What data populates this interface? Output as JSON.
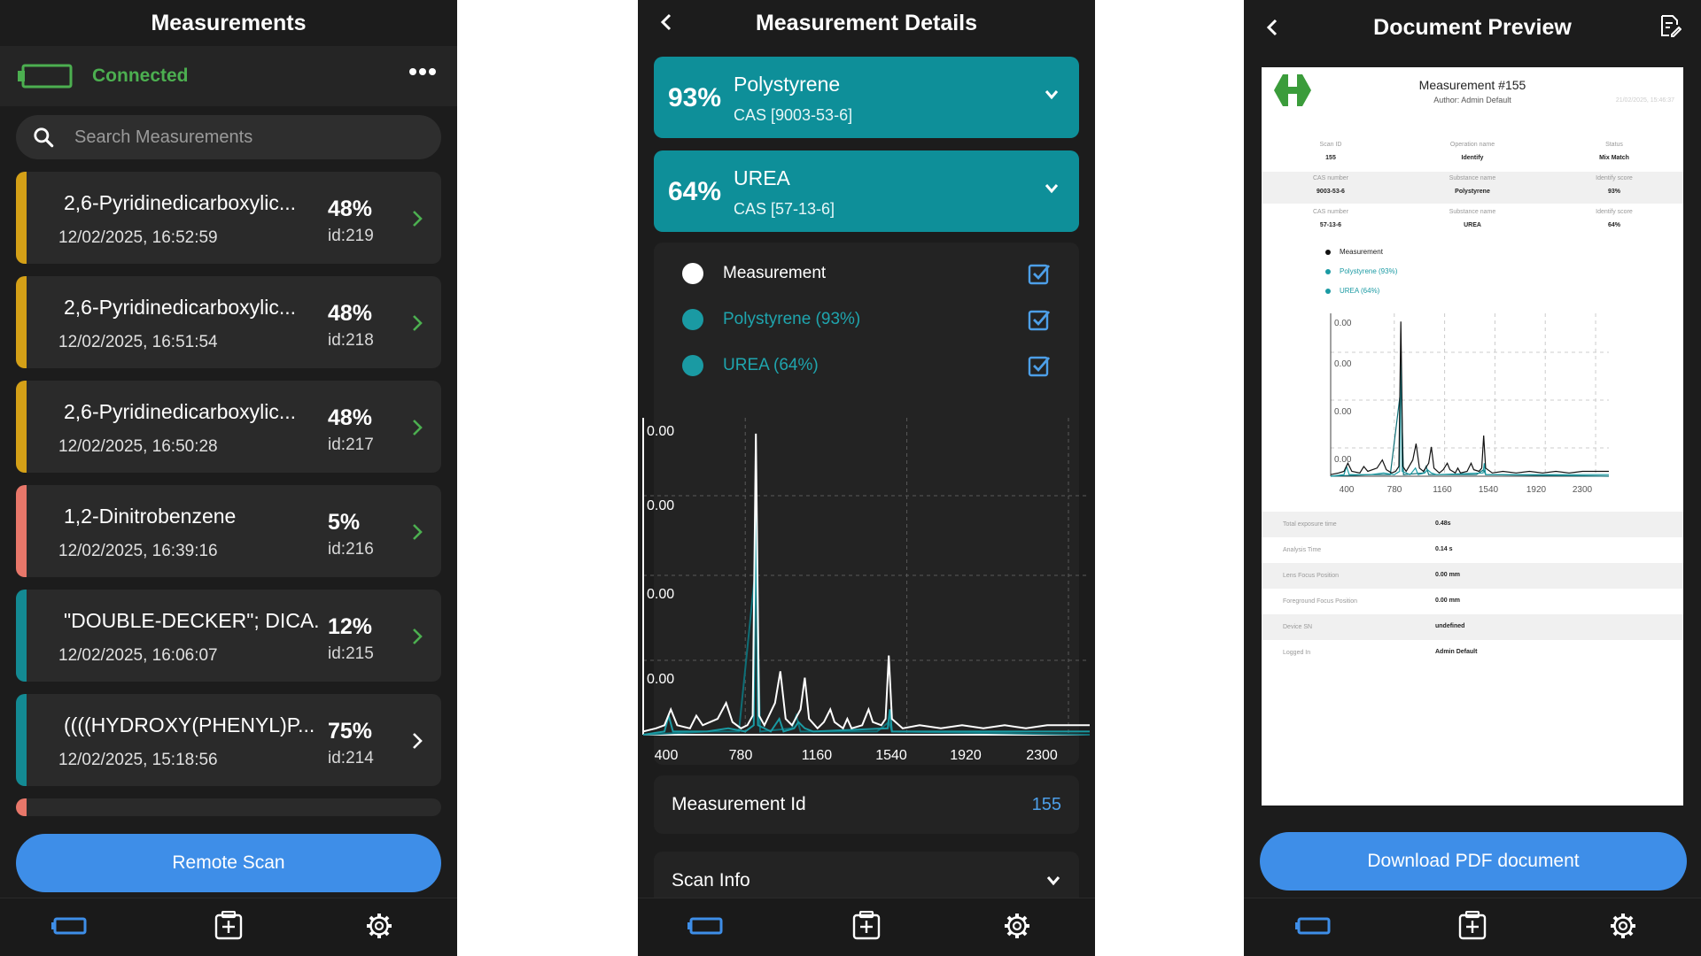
{
  "colors": {
    "accent": "#3e8ee8",
    "teal": "#0e8f99",
    "connected": "#4caf50",
    "bar_yellow": "#d4a017",
    "bar_red": "#e8776a",
    "bar_teal": "#138a93"
  },
  "p1": {
    "title": "Measurements",
    "status": "Connected",
    "search_placeholder": "Search Measurements",
    "items": [
      {
        "name": "2,6-Pyridinedicarboxylic...",
        "date": "12/02/2025, 16:52:59",
        "pct": "48%",
        "id": "id:219",
        "bar": "yellow"
      },
      {
        "name": "2,6-Pyridinedicarboxylic...",
        "date": "12/02/2025, 16:51:54",
        "pct": "48%",
        "id": "id:218",
        "bar": "yellow"
      },
      {
        "name": "2,6-Pyridinedicarboxylic...",
        "date": "12/02/2025, 16:50:28",
        "pct": "48%",
        "id": "id:217",
        "bar": "yellow"
      },
      {
        "name": "1,2-Dinitrobenzene",
        "date": "12/02/2025, 16:39:16",
        "pct": "5%",
        "id": "id:216",
        "bar": "red"
      },
      {
        "name": "\"DOUBLE-DECKER\"; DICA...",
        "date": "12/02/2025, 16:06:07",
        "pct": "12%",
        "id": "id:215",
        "bar": "teal"
      },
      {
        "name": "((((HYDROXY(PHENYL)P...",
        "date": "12/02/2025, 15:18:56",
        "pct": "75%",
        "id": "id:214",
        "bar": "teal"
      }
    ],
    "remote_scan": "Remote Scan"
  },
  "p2": {
    "title": "Measurement Details",
    "substances": [
      {
        "pct": "93%",
        "name": "Polystyrene",
        "cas": "CAS [9003-53-6]"
      },
      {
        "pct": "64%",
        "name": "UREA",
        "cas": "CAS [57-13-6]"
      }
    ],
    "legend": [
      {
        "label": "Measurement",
        "color": "#ffffff",
        "text_color": "#ffffff"
      },
      {
        "label": "Polystyrene (93%)",
        "color": "#1a9aa3",
        "text_color": "#1fa5ae"
      },
      {
        "label": "UREA (64%)",
        "color": "#1a9aa3",
        "text_color": "#1fa5ae"
      }
    ],
    "measurement_id_label": "Measurement Id",
    "measurement_id_value": "155",
    "scan_info": "Scan Info"
  },
  "p3": {
    "title": "Document Preview",
    "doc": {
      "title": "Measurement #155",
      "author": "Author: Admin Default",
      "date": "21/02/2025, 15:46:37",
      "rows": [
        [
          {
            "k": "Scan ID",
            "v": "155"
          },
          {
            "k": "Operation name",
            "v": "Identify"
          },
          {
            "k": "Status",
            "v": "Mix Match"
          }
        ],
        [
          {
            "k": "CAS number",
            "v": "9003-53-6"
          },
          {
            "k": "Substance name",
            "v": "Polystyrene"
          },
          {
            "k": "Identify score",
            "v": "93%"
          }
        ],
        [
          {
            "k": "CAS number",
            "v": "57-13-6"
          },
          {
            "k": "Substance name",
            "v": "UREA"
          },
          {
            "k": "Identify score",
            "v": "64%"
          }
        ]
      ],
      "legend": [
        {
          "label": "Measurement",
          "color": "#111111",
          "text_color": "#222222"
        },
        {
          "label": "Polystyrene (93%)",
          "color": "#1a9aa3",
          "text_color": "#1a9aa3"
        },
        {
          "label": "UREA (64%)",
          "color": "#1a9aa3",
          "text_color": "#1a9aa3"
        }
      ],
      "props": [
        {
          "k": "Total exposure time",
          "v": "0.48s"
        },
        {
          "k": "Analysis Time",
          "v": "0.14 s"
        },
        {
          "k": "Lens Focus Position",
          "v": "0.00 mm"
        },
        {
          "k": "Foreground Focus Position",
          "v": "0.00 mm"
        },
        {
          "k": "Device SN",
          "v": "undefined"
        },
        {
          "k": "Logged In",
          "v": "Admin Default"
        }
      ]
    },
    "download": "Download PDF document"
  },
  "chart_data": {
    "type": "line",
    "x_ticks": [
      "400",
      "780",
      "1160",
      "1540",
      "1920",
      "2300"
    ],
    "y_ticks": [
      "0.00",
      "0.00",
      "0.00",
      "0.00"
    ],
    "xlim": [
      300,
      2400
    ],
    "ylim": [
      0,
      1
    ],
    "grid": true,
    "series": [
      {
        "name": "Measurement",
        "color": "#ffffff",
        "points": [
          [
            300,
            0.01
          ],
          [
            360,
            0.02
          ],
          [
            400,
            0.03
          ],
          [
            430,
            0.08
          ],
          [
            460,
            0.03
          ],
          [
            520,
            0.02
          ],
          [
            550,
            0.06
          ],
          [
            580,
            0.03
          ],
          [
            650,
            0.05
          ],
          [
            690,
            0.1
          ],
          [
            720,
            0.04
          ],
          [
            760,
            0.02
          ],
          [
            790,
            0.03
          ],
          [
            815,
            0.06
          ],
          [
            830,
            0.95
          ],
          [
            845,
            0.06
          ],
          [
            870,
            0.03
          ],
          [
            920,
            0.1
          ],
          [
            945,
            0.2
          ],
          [
            970,
            0.05
          ],
          [
            1000,
            0.03
          ],
          [
            1040,
            0.08
          ],
          [
            1060,
            0.18
          ],
          [
            1080,
            0.05
          ],
          [
            1120,
            0.02
          ],
          [
            1150,
            0.04
          ],
          [
            1180,
            0.08
          ],
          [
            1200,
            0.04
          ],
          [
            1240,
            0.02
          ],
          [
            1260,
            0.05
          ],
          [
            1280,
            0.02
          ],
          [
            1330,
            0.03
          ],
          [
            1360,
            0.08
          ],
          [
            1380,
            0.04
          ],
          [
            1420,
            0.03
          ],
          [
            1440,
            0.05
          ],
          [
            1455,
            0.25
          ],
          [
            1470,
            0.05
          ],
          [
            1520,
            0.02
          ],
          [
            1600,
            0.03
          ],
          [
            1700,
            0.02
          ],
          [
            1800,
            0.03
          ],
          [
            1900,
            0.02
          ],
          [
            2000,
            0.03
          ],
          [
            2100,
            0.02
          ],
          [
            2200,
            0.03
          ],
          [
            2300,
            0.03
          ],
          [
            2400,
            0.03
          ]
        ]
      },
      {
        "name": "Polystyrene (93%)",
        "color": "#1a9aa3",
        "points": [
          [
            300,
            0.0
          ],
          [
            400,
            0.01
          ],
          [
            420,
            0.06
          ],
          [
            440,
            0.01
          ],
          [
            600,
            0.01
          ],
          [
            700,
            0.02
          ],
          [
            780,
            0.01
          ],
          [
            820,
            0.03
          ],
          [
            830,
            0.8
          ],
          [
            840,
            0.03
          ],
          [
            900,
            0.01
          ],
          [
            940,
            0.05
          ],
          [
            960,
            0.01
          ],
          [
            1010,
            0.02
          ],
          [
            1030,
            0.04
          ],
          [
            1060,
            0.02
          ],
          [
            1100,
            0.01
          ],
          [
            1450,
            0.02
          ],
          [
            1460,
            0.08
          ],
          [
            1470,
            0.01
          ],
          [
            1600,
            0.01
          ],
          [
            2400,
            0.01
          ]
        ]
      },
      {
        "name": "UREA (64%)",
        "color": "#0e6f77",
        "points": [
          [
            300,
            0.0
          ],
          [
            600,
            0.01
          ],
          [
            750,
            0.01
          ],
          [
            832,
            0.55
          ],
          [
            850,
            0.01
          ],
          [
            1000,
            0.02
          ],
          [
            1020,
            0.06
          ],
          [
            1040,
            0.01
          ],
          [
            1400,
            0.01
          ],
          [
            1455,
            0.04
          ],
          [
            1470,
            0.01
          ],
          [
            2400,
            0.0
          ]
        ]
      }
    ]
  }
}
